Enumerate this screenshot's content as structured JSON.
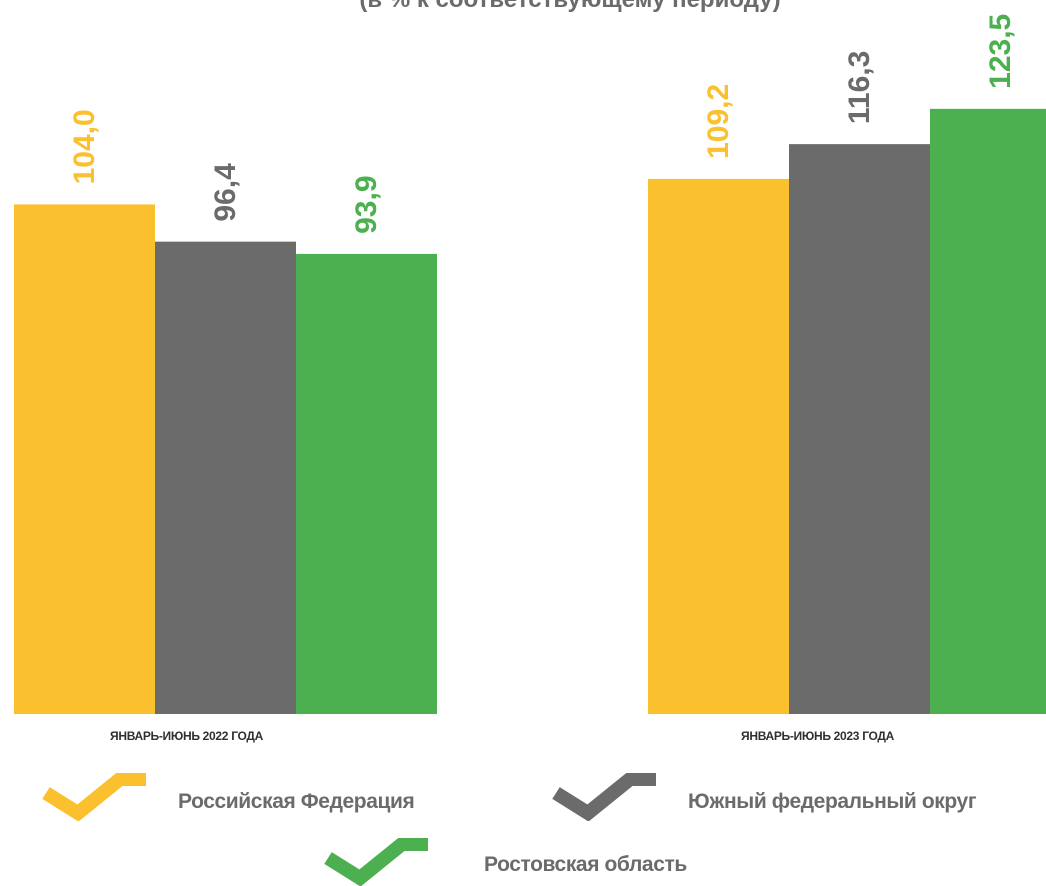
{
  "title": "(в % к соответствующему периоду)",
  "chart_data": {
    "type": "bar",
    "categories": [
      "ЯНВАРЬ-ИЮНЬ 2022 ГОДА",
      "ЯНВАРЬ-ИЮНЬ 2023 ГОДА"
    ],
    "series": [
      {
        "name": "Российская Федерация",
        "values": [
          104.0,
          109.2
        ],
        "labels": [
          "104,0",
          "109,2"
        ],
        "color": "#FBC02D"
      },
      {
        "name": "Южный федеральный округ",
        "values": [
          96.4,
          116.3
        ],
        "labels": [
          "96,4",
          "116,3"
        ],
        "color": "#6B6B6B"
      },
      {
        "name": "Ростовская область",
        "values": [
          93.9,
          123.5
        ],
        "labels": [
          "93,9",
          "123,5"
        ],
        "color": "#4CAF50"
      }
    ],
    "ylim": [
      0,
      140
    ],
    "grid": false,
    "legend": "bottom"
  }
}
